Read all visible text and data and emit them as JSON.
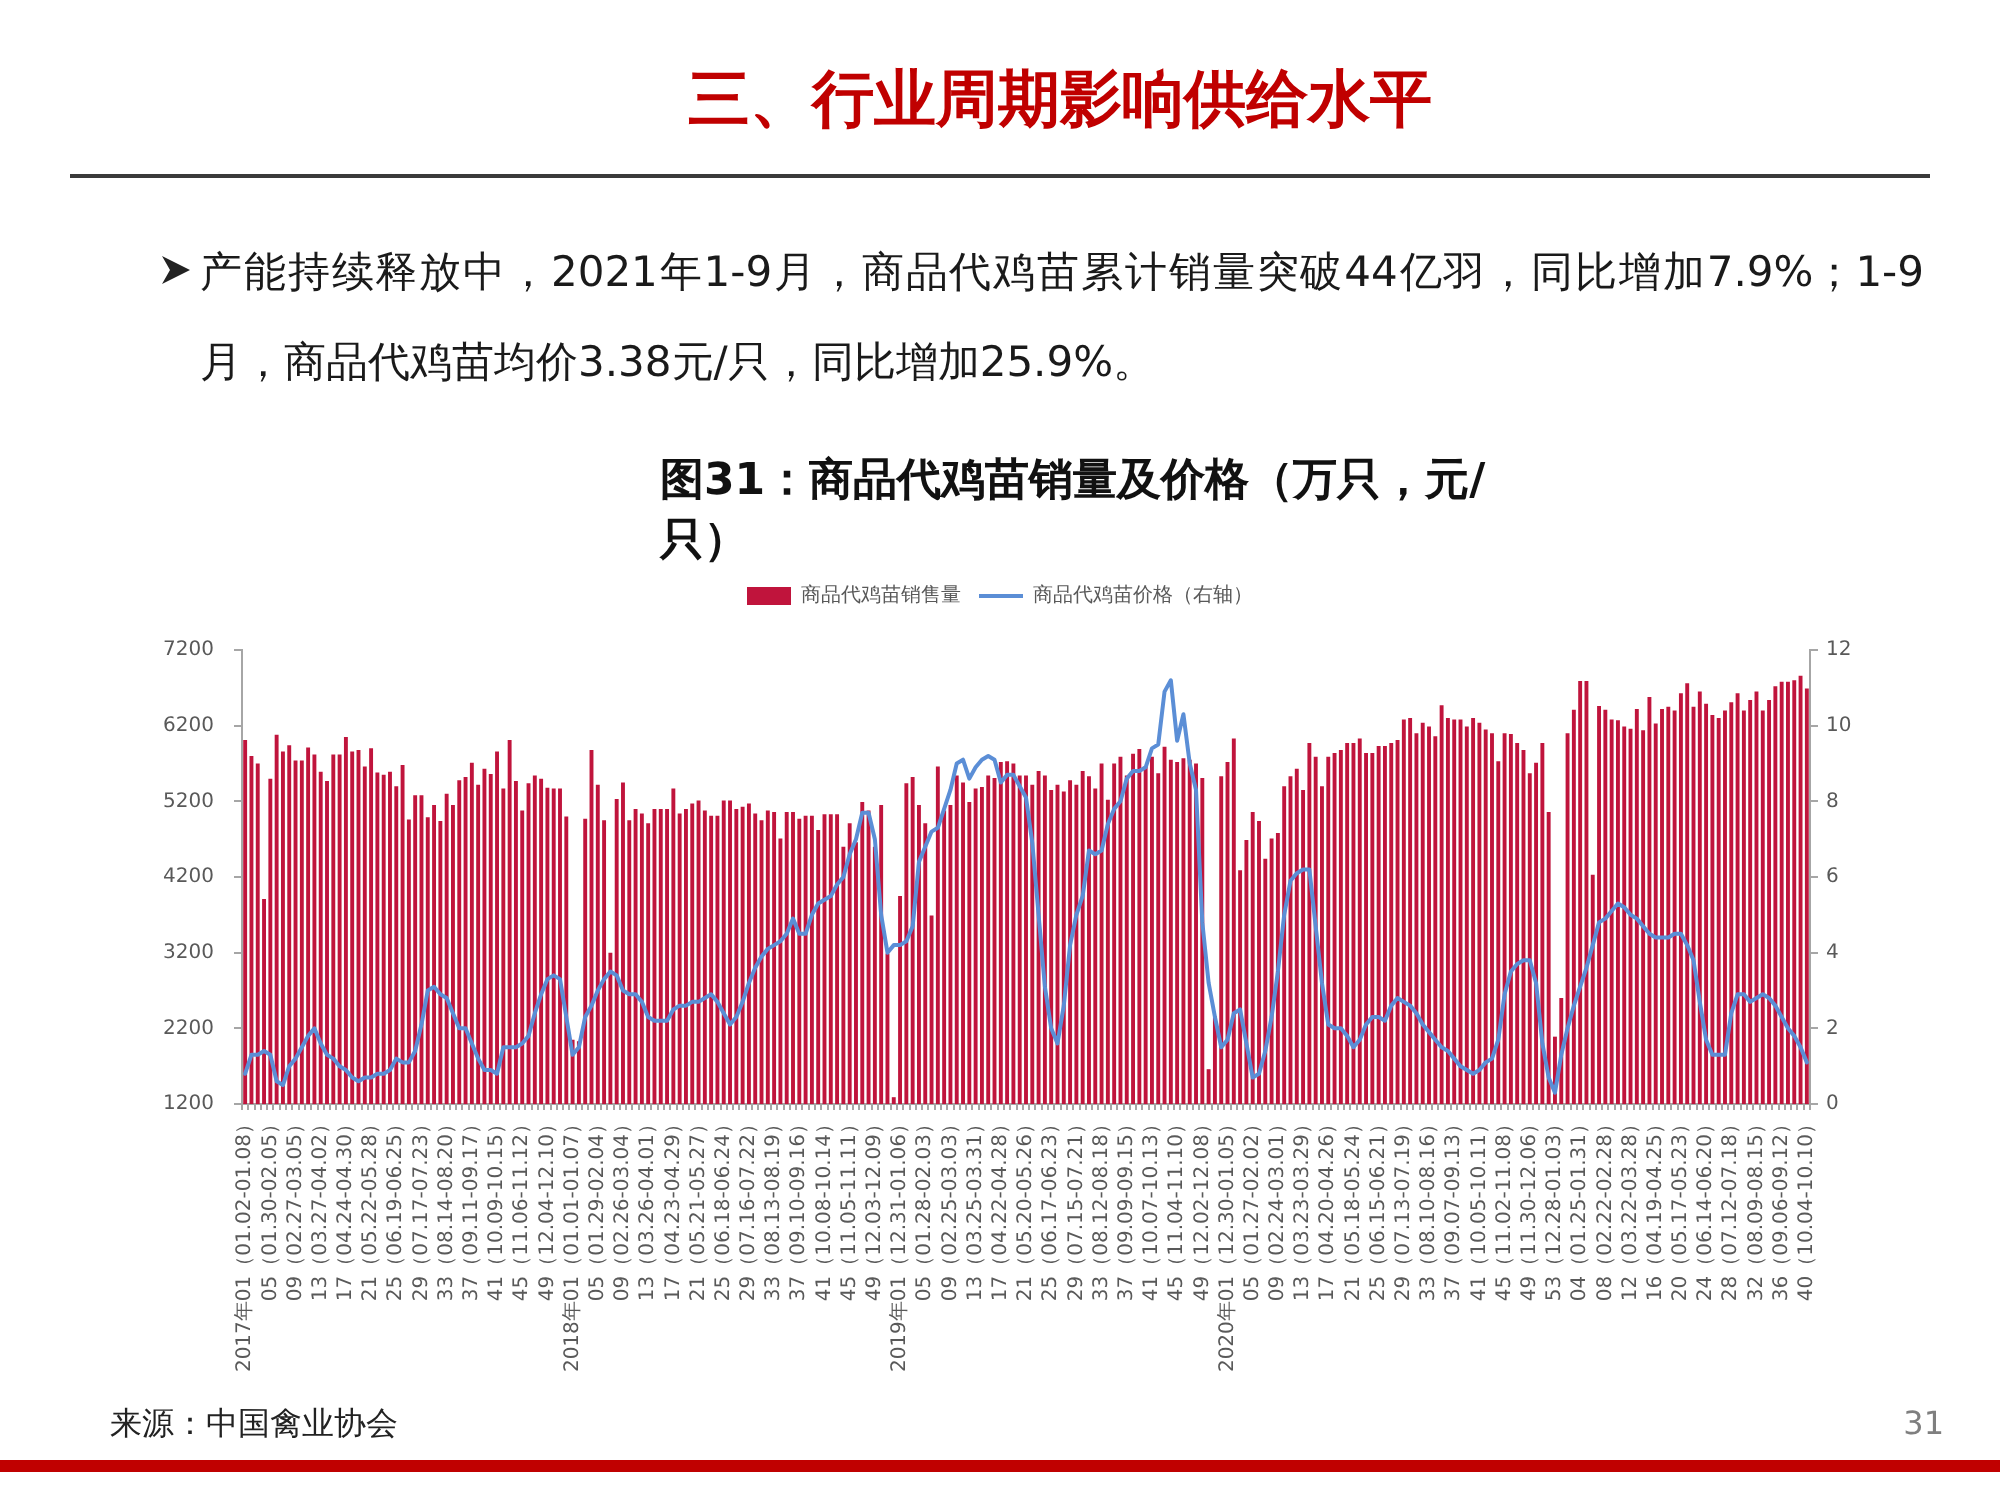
{
  "chart_data": {
    "type": "bar",
    "title": "三、行业周期影响供给水平",
    "subtitle": "图31：商品代鸡苗销量及价格（万只，元/只）",
    "annotations": [
      "产能持续释放中，2021年1-9月，商品代鸡苗累计销量突破44亿羽，同比增加7.9%；1-9月，商品代鸡苗均价3.38元/只，同比增加25.9%。",
      "来源：中国禽业协会",
      "31"
    ],
    "categories": [
      "2017年01（01.02-01.08）",
      null,
      null,
      null,
      "05（01.30-02.05）",
      null,
      null,
      null,
      "09（02.27-03.05）",
      null,
      null,
      null,
      "13（03.27-04.02）",
      null,
      null,
      null,
      "17（04.24-04.30）",
      null,
      null,
      null,
      "21（05.22-05.28）",
      null,
      null,
      null,
      "25（06.19-06.25）",
      null,
      null,
      null,
      "29（07.17-07.23）",
      null,
      null,
      null,
      "33（08.14-08.20）",
      null,
      null,
      null,
      "37（09.11-09.17）",
      null,
      null,
      null,
      "41（10.09-10.15）",
      null,
      null,
      null,
      "45（11.06-11.12）",
      null,
      null,
      null,
      "49（12.04-12.10）",
      null,
      null,
      null,
      "2018年01（01.01-01.07）",
      null,
      null,
      null,
      "05（01.29-02.04）",
      null,
      null,
      null,
      "09（02.26-03.04）",
      null,
      null,
      null,
      "13（03.26-04.01）",
      null,
      null,
      null,
      "17（04.23-04.29）",
      null,
      null,
      null,
      "21（05.21-05.27）",
      null,
      null,
      null,
      "25（06.18-06.24）",
      null,
      null,
      null,
      "29（07.16-07.22）",
      null,
      null,
      null,
      "33（08.13-08.19）",
      null,
      null,
      null,
      "37（09.10-09.16）",
      null,
      null,
      null,
      "41（10.08-10.14）",
      null,
      null,
      null,
      "45（11.05-11.11）",
      null,
      null,
      null,
      "49（12.03-12.09）",
      null,
      null,
      null,
      "2019年01（12.31-01.06）",
      null,
      null,
      null,
      "05（01.28-02.03）",
      null,
      null,
      null,
      "09（02.25-03.03）",
      null,
      null,
      null,
      "13（03.25-03.31）",
      null,
      null,
      null,
      "17（04.22-04.28）",
      null,
      null,
      null,
      "21（05.20-05.26）",
      null,
      null,
      null,
      "25（06.17-06.23）",
      null,
      null,
      null,
      "29（07.15-07.21）",
      null,
      null,
      null,
      "33（08.12-08.18）",
      null,
      null,
      null,
      "37（09.09-09.15）",
      null,
      null,
      null,
      "41（10.07-10.13）",
      null,
      null,
      null,
      "45（11.04-11.10）",
      null,
      null,
      null,
      "49（12.02-12.08）",
      null,
      null,
      null,
      "2020年01（12.30-01.05）",
      null,
      null,
      null,
      "05（01.27-02.02）",
      null,
      null,
      null,
      "09（02.24-03.01）",
      null,
      null,
      null,
      "13（03.23-03.29）",
      null,
      null,
      null,
      "17（04.20-04.26）",
      null,
      null,
      null,
      "21（05.18-05.24）",
      null,
      null,
      null,
      "25（06.15-06.21）",
      null,
      null,
      null,
      "29（07.13-07.19）",
      null,
      null,
      null,
      "33（08.10-08.16）",
      null,
      null,
      null,
      "37（09.07-09.13）",
      null,
      null,
      null,
      "41（10.05-10.11）",
      null,
      null,
      null,
      "45（11.02-11.08）",
      null,
      null,
      null,
      "49（11.30-12.06）",
      null,
      null,
      null,
      "53（12.28-01.03）",
      null,
      null,
      null,
      "04（01.25-01.31）",
      null,
      null,
      null,
      "08（02.22-02.28）",
      null,
      null,
      null,
      "12（03.22-03.28）",
      null,
      null,
      null,
      "16（04.19-04.25）",
      null,
      null,
      null,
      "20（05.17-05.23）",
      null,
      null,
      null,
      "24（06.14-06.20）",
      null,
      null,
      null,
      "28（07.12-07.18）",
      null,
      null,
      null,
      "32（08.09-08.15）",
      null,
      null,
      null,
      "36（09.06-09.12）",
      null,
      null,
      null,
      "40（10.04-10.10）"
    ],
    "series": [
      {
        "name": "商品代鸡苗销售量",
        "color": "#c0143c",
        "values": [
          6010,
          5800,
          5700,
          3910,
          5500,
          6080,
          5860,
          5940,
          5740,
          5740,
          5910,
          5820,
          5590,
          5470,
          5820,
          5820,
          6050,
          5860,
          5880,
          5660,
          5900,
          5580,
          5550,
          5590,
          5400,
          5680,
          4960,
          5280,
          5280,
          4990,
          5150,
          4940,
          5300,
          5150,
          5480,
          5520,
          5710,
          5420,
          5630,
          5560,
          5860,
          5370,
          6010,
          5470,
          5080,
          5440,
          5540,
          5500,
          5380,
          5370,
          5370,
          5000,
          2050,
          2030,
          4970,
          5880,
          5420,
          4950,
          3200,
          5230,
          5450,
          4950,
          5100,
          5040,
          4910,
          5100,
          5100,
          5100,
          5370,
          5040,
          5100,
          5170,
          5210,
          5080,
          5010,
          5010,
          5210,
          5210,
          5100,
          5130,
          5170,
          5040,
          4950,
          5080,
          5060,
          4710,
          5060,
          5060,
          4970,
          5010,
          5010,
          4820,
          5030,
          5030,
          5030,
          4600,
          4910,
          4660,
          5190,
          5080,
          4600,
          5150,
          3190,
          1290,
          3950,
          5440,
          5520,
          5150,
          4910,
          3690,
          5660,
          5080,
          5150,
          5540,
          5450,
          5190,
          5370,
          5390,
          5540,
          5510,
          5720,
          5730,
          5700,
          5540,
          5540,
          5420,
          5600,
          5540,
          5350,
          5420,
          5330,
          5480,
          5420,
          5600,
          5530,
          5370,
          5700,
          5220,
          5700,
          5790,
          5540,
          5830,
          5890,
          5660,
          5790,
          5570,
          5920,
          5750,
          5720,
          5770,
          5750,
          5700,
          5510,
          1660,
          2360,
          5530,
          5720,
          6030,
          4290,
          4690,
          5060,
          4940,
          4440,
          4710,
          4780,
          5400,
          5530,
          5630,
          5350,
          5970,
          5790,
          5400,
          5790,
          5840,
          5880,
          5970,
          5970,
          6030,
          5840,
          5840,
          5930,
          5930,
          5970,
          6010,
          6280,
          6300,
          6100,
          6240,
          6190,
          6060,
          6470,
          6300,
          6280,
          6280,
          6190,
          6300,
          6240,
          6150,
          6100,
          5730,
          6100,
          6090,
          5970,
          5880,
          5570,
          5710,
          5970,
          5060,
          2090,
          2600,
          6100,
          6410,
          6790,
          6790,
          4230,
          6460,
          6410,
          6280,
          6270,
          6190,
          6160,
          6420,
          6140,
          6580,
          6230,
          6420,
          6450,
          6400,
          6630,
          6760,
          6450,
          6650,
          6490,
          6340,
          6300,
          6400,
          6510,
          6630,
          6400,
          6540,
          6650,
          6400,
          6540,
          6720,
          6780,
          6780,
          6800,
          6860,
          6690
        ]
      },
      {
        "name": "商品代鸡苗价格（右轴）",
        "type": "line",
        "axis": "y2",
        "color": "#5b8ed6",
        "values": [
          0.8,
          1.3,
          1.3,
          1.4,
          1.3,
          0.6,
          0.5,
          1.0,
          1.2,
          1.5,
          1.8,
          2.0,
          1.6,
          1.3,
          1.2,
          1.0,
          0.9,
          0.7,
          0.6,
          0.7,
          0.7,
          0.8,
          0.8,
          0.9,
          1.2,
          1.1,
          1.1,
          1.4,
          2.1,
          3.0,
          3.1,
          2.9,
          2.8,
          2.4,
          2.0,
          2.0,
          1.6,
          1.2,
          0.9,
          0.9,
          0.8,
          1.5,
          1.5,
          1.5,
          1.6,
          1.8,
          2.4,
          2.9,
          3.3,
          3.4,
          3.3,
          2.3,
          1.3,
          1.5,
          2.3,
          2.6,
          3.0,
          3.3,
          3.5,
          3.4,
          3.0,
          2.9,
          2.9,
          2.7,
          2.3,
          2.2,
          2.2,
          2.2,
          2.5,
          2.6,
          2.6,
          2.7,
          2.7,
          2.8,
          2.9,
          2.7,
          2.4,
          2.1,
          2.3,
          2.7,
          3.2,
          3.6,
          3.9,
          4.1,
          4.2,
          4.3,
          4.5,
          4.9,
          4.5,
          4.5,
          5.0,
          5.3,
          5.4,
          5.5,
          5.8,
          6.0,
          6.6,
          7.0,
          7.7,
          7.7,
          7.0,
          5.0,
          4.0,
          4.2,
          4.2,
          4.3,
          4.7,
          6.4,
          6.8,
          7.2,
          7.3,
          7.8,
          8.3,
          9.0,
          9.1,
          8.6,
          8.9,
          9.1,
          9.2,
          9.1,
          8.5,
          8.7,
          8.7,
          8.4,
          8.1,
          6.9,
          5.0,
          3.1,
          2.0,
          1.6,
          2.6,
          4.2,
          5.0,
          5.5,
          6.7,
          6.6,
          6.7,
          7.4,
          7.8,
          8.0,
          8.6,
          8.8,
          8.8,
          8.9,
          9.4,
          9.5,
          10.9,
          11.2,
          9.6,
          10.3,
          9.0,
          8.3,
          4.8,
          3.2,
          2.3,
          1.5,
          1.7,
          2.4,
          2.5,
          1.6,
          0.7,
          0.8,
          1.4,
          2.3,
          3.5,
          5.0,
          5.9,
          6.1,
          6.2,
          6.2,
          4.7,
          3.2,
          2.1,
          2.0,
          2.0,
          1.8,
          1.5,
          1.7,
          2.1,
          2.3,
          2.3,
          2.2,
          2.6,
          2.8,
          2.7,
          2.6,
          2.4,
          2.1,
          1.9,
          1.7,
          1.5,
          1.4,
          1.2,
          1.0,
          0.9,
          0.8,
          0.9,
          1.1,
          1.2,
          1.7,
          2.9,
          3.5,
          3.7,
          3.8,
          3.8,
          3.2,
          1.6,
          0.7,
          0.3,
          1.3,
          2.0,
          2.6,
          3.1,
          3.6,
          4.2,
          4.8,
          4.9,
          5.1,
          5.3,
          5.2,
          5.0,
          4.9,
          4.7,
          4.5,
          4.4,
          4.4,
          4.4,
          4.5,
          4.5,
          4.2,
          3.8,
          2.7,
          1.7,
          1.3,
          1.3,
          1.3,
          2.4,
          2.9,
          2.9,
          2.7,
          2.8,
          2.9,
          2.8,
          2.6,
          2.3,
          2.0,
          1.8,
          1.5,
          1.1
        ]
      }
    ],
    "ylim": [
      1200,
      7200
    ],
    "yticks": [
      1200,
      2200,
      3200,
      4200,
      5200,
      6200,
      7200
    ],
    "y2lim": [
      0,
      12
    ],
    "y2ticks": [
      0,
      2,
      4,
      6,
      8,
      10,
      12
    ],
    "legend": "top"
  }
}
